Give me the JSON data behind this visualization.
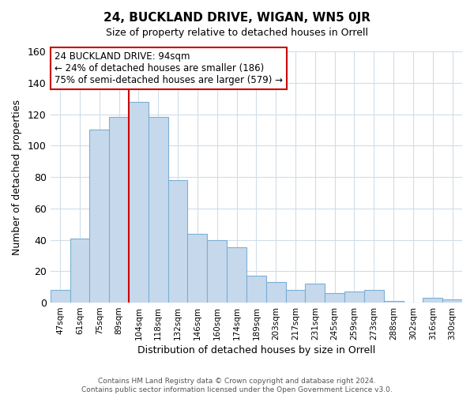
{
  "title": "24, BUCKLAND DRIVE, WIGAN, WN5 0JR",
  "subtitle": "Size of property relative to detached houses in Orrell",
  "xlabel": "Distribution of detached houses by size in Orrell",
  "ylabel": "Number of detached properties",
  "footer_line1": "Contains HM Land Registry data © Crown copyright and database right 2024.",
  "footer_line2": "Contains public sector information licensed under the Open Government Licence v3.0.",
  "bin_labels": [
    "47sqm",
    "61sqm",
    "75sqm",
    "89sqm",
    "104sqm",
    "118sqm",
    "132sqm",
    "146sqm",
    "160sqm",
    "174sqm",
    "189sqm",
    "203sqm",
    "217sqm",
    "231sqm",
    "245sqm",
    "259sqm",
    "273sqm",
    "288sqm",
    "302sqm",
    "316sqm",
    "330sqm"
  ],
  "bar_heights": [
    8,
    41,
    110,
    118,
    128,
    118,
    78,
    44,
    40,
    35,
    17,
    13,
    8,
    12,
    6,
    7,
    8,
    1,
    0,
    3,
    2
  ],
  "bar_color": "#c6d9ec",
  "bar_edge_color": "#7bafd4",
  "vline_color": "#cc0000",
  "annotation_title": "24 BUCKLAND DRIVE: 94sqm",
  "annotation_line1": "← 24% of detached houses are smaller (186)",
  "annotation_line2": "75% of semi-detached houses are larger (579) →",
  "annotation_box_color": "white",
  "annotation_box_edge": "#cc0000",
  "ylim": [
    0,
    160
  ],
  "yticks": [
    0,
    20,
    40,
    60,
    80,
    100,
    120,
    140,
    160
  ],
  "background_color": "white",
  "plot_bg_color": "white",
  "grid_color": "#d0dde8"
}
